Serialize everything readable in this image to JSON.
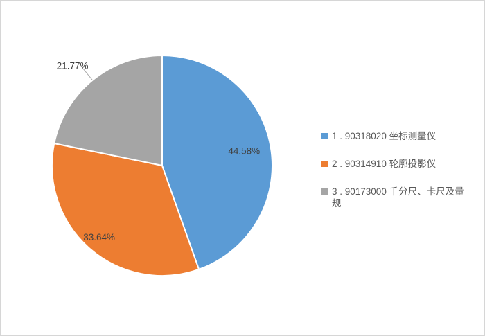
{
  "page": {
    "background": "#FFFFFF",
    "border_color": "#D6D6D6"
  },
  "chart_data": {
    "type": "pie",
    "title": "",
    "categories": [
      "1 . 90318020 坐标测量仪",
      "2 . 90314910 轮廓投影仪",
      "3 . 90173000 千分尺、卡尺及量规"
    ],
    "values": [
      44.58,
      33.64,
      21.77
    ],
    "data_labels": [
      "44.58%",
      "33.64%",
      "21.77%"
    ],
    "colors": [
      "#5B9BD5",
      "#ED7D31",
      "#A5A5A5"
    ],
    "start_angle_deg": 0,
    "direction": "clockwise",
    "slice_border_color": "#FFFFFF",
    "label_text_color": "#404040",
    "leader_line_color": "#A6A6A6",
    "legend_position": "right",
    "legend": {
      "text_color": "#595959",
      "items": [
        {
          "marker_color": "#5B9BD5",
          "lines": [
            "1 . 90318020 坐标测量仪",
            ""
          ]
        },
        {
          "marker_color": "#ED7D31",
          "lines": [
            "2 . 90314910 轮廓投影仪",
            ""
          ]
        },
        {
          "marker_color": "#A5A5A5",
          "lines": [
            "3 . 90173000 千分尺、卡尺及量",
            "规"
          ]
        }
      ]
    }
  }
}
